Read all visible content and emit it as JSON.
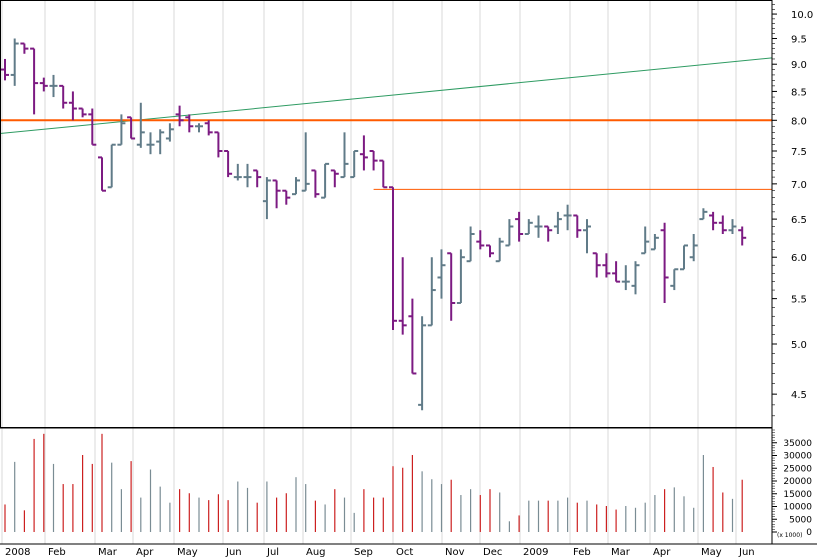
{
  "chart_data": {
    "type": "ohlc-bar",
    "scale": "log",
    "price_axis": {
      "ticks": [
        "10.0",
        "9.5",
        "9.0",
        "8.5",
        "8.0",
        "7.5",
        "7.0",
        "6.5",
        "6.0",
        "5.5",
        "5.0",
        "4.5"
      ],
      "range": [
        4.2,
        10.3
      ]
    },
    "time_axis": {
      "labels": [
        "2008",
        "Feb",
        "Mar",
        "Apr",
        "May",
        "Jun",
        "Jul",
        "Aug",
        "Sep",
        "Oct",
        "Nov",
        "Dec",
        "2009",
        "Feb",
        "Mar",
        "Apr",
        "May",
        "Jun"
      ]
    },
    "volume_axis": {
      "ticks": [
        "35000",
        "30000",
        "25000",
        "20000",
        "15000",
        "10000",
        "5000",
        "0"
      ],
      "range": [
        0,
        40000
      ],
      "unit_label": "(x 1000)"
    },
    "weekly_bars": [
      [
        8.9,
        9.1,
        8.7,
        8.8
      ],
      [
        8.8,
        9.5,
        8.6,
        9.4
      ],
      [
        9.4,
        9.4,
        9.2,
        9.3
      ],
      [
        9.3,
        9.3,
        8.1,
        8.65
      ],
      [
        8.65,
        8.75,
        8.5,
        8.6
      ],
      [
        8.6,
        8.8,
        8.4,
        8.6
      ],
      [
        8.6,
        8.6,
        8.2,
        8.3
      ],
      [
        8.3,
        8.5,
        8.0,
        8.2
      ],
      [
        8.2,
        8.2,
        8.05,
        8.1
      ],
      [
        8.1,
        8.2,
        7.6,
        7.6
      ],
      [
        7.4,
        7.4,
        6.9,
        6.9
      ],
      [
        6.95,
        7.6,
        6.95,
        7.6
      ],
      [
        7.6,
        8.1,
        7.6,
        7.95
      ],
      [
        8.05,
        8.05,
        7.7,
        7.7
      ],
      [
        7.6,
        8.3,
        7.55,
        7.8
      ],
      [
        7.6,
        7.8,
        7.45,
        7.6
      ],
      [
        7.65,
        7.85,
        7.45,
        7.8
      ],
      [
        7.7,
        7.95,
        7.65,
        7.85
      ],
      [
        8.1,
        8.25,
        7.9,
        8.0
      ],
      [
        8.05,
        8.1,
        7.8,
        7.9
      ],
      [
        7.9,
        7.95,
        7.8,
        7.9
      ],
      [
        7.95,
        8.0,
        7.75,
        7.8
      ],
      [
        7.8,
        7.8,
        7.4,
        7.5
      ],
      [
        7.5,
        7.5,
        7.1,
        7.15
      ],
      [
        7.1,
        7.3,
        7.05,
        7.1
      ],
      [
        7.1,
        7.3,
        6.95,
        7.1
      ],
      [
        7.2,
        7.2,
        6.95,
        7.1
      ],
      [
        6.75,
        7.1,
        6.5,
        7.05
      ],
      [
        7.05,
        7.05,
        6.65,
        6.9
      ],
      [
        6.9,
        6.9,
        6.7,
        6.8
      ],
      [
        6.85,
        7.1,
        6.85,
        7.05
      ],
      [
        6.9,
        7.8,
        6.9,
        7.0
      ],
      [
        7.2,
        7.2,
        6.8,
        6.85
      ],
      [
        6.8,
        7.3,
        6.8,
        7.3
      ],
      [
        7.2,
        7.2,
        6.95,
        7.15
      ],
      [
        7.1,
        7.8,
        7.1,
        7.3
      ],
      [
        7.1,
        7.5,
        7.1,
        7.5
      ],
      [
        7.45,
        7.75,
        7.2,
        7.4
      ],
      [
        7.5,
        7.5,
        7.2,
        7.35
      ],
      [
        7.35,
        7.35,
        6.95,
        6.95
      ],
      [
        6.95,
        6.95,
        5.15,
        5.25
      ],
      [
        5.25,
        6.0,
        5.1,
        5.2
      ],
      [
        5.3,
        5.5,
        4.7,
        4.7
      ],
      [
        4.4,
        5.3,
        4.35,
        5.2
      ],
      [
        5.2,
        6.0,
        5.2,
        5.6
      ],
      [
        5.75,
        6.1,
        5.5,
        5.9
      ],
      [
        6.05,
        6.05,
        5.25,
        5.45
      ],
      [
        5.45,
        6.1,
        5.45,
        6.0
      ],
      [
        5.95,
        6.4,
        5.95,
        6.3
      ],
      [
        6.2,
        6.35,
        6.1,
        6.15
      ],
      [
        6.15,
        6.15,
        6.0,
        6.05
      ],
      [
        5.95,
        6.25,
        5.95,
        6.2
      ],
      [
        6.15,
        6.5,
        6.15,
        6.4
      ],
      [
        6.5,
        6.6,
        6.2,
        6.3
      ],
      [
        6.3,
        6.5,
        6.3,
        6.45
      ],
      [
        6.4,
        6.55,
        6.25,
        6.4
      ],
      [
        6.4,
        6.4,
        6.2,
        6.35
      ],
      [
        6.4,
        6.6,
        6.3,
        6.5
      ],
      [
        6.55,
        6.7,
        6.35,
        6.55
      ],
      [
        6.55,
        6.55,
        6.25,
        6.35
      ],
      [
        6.35,
        6.5,
        6.05,
        6.4
      ],
      [
        6.05,
        6.05,
        5.75,
        5.9
      ],
      [
        5.9,
        6.05,
        5.75,
        5.8
      ],
      [
        5.8,
        5.95,
        5.7,
        5.7
      ],
      [
        5.7,
        5.9,
        5.6,
        5.7
      ],
      [
        5.65,
        5.95,
        5.55,
        5.9
      ],
      [
        6.05,
        6.4,
        6.05,
        6.2
      ],
      [
        6.1,
        6.3,
        6.1,
        6.25
      ],
      [
        6.35,
        6.45,
        5.45,
        5.75
      ],
      [
        5.65,
        5.85,
        5.6,
        5.85
      ],
      [
        5.85,
        6.15,
        5.85,
        6.15
      ],
      [
        6.0,
        6.3,
        5.95,
        6.15
      ],
      [
        6.5,
        6.65,
        6.5,
        6.6
      ],
      [
        6.55,
        6.6,
        6.35,
        6.45
      ],
      [
        6.45,
        6.55,
        6.3,
        6.35
      ],
      [
        6.35,
        6.5,
        6.3,
        6.4
      ],
      [
        6.35,
        6.4,
        6.15,
        6.25
      ]
    ],
    "weekly_volume_k": [
      10800,
      27500,
      8500,
      36500,
      38500,
      26700,
      18800,
      18800,
      30200,
      26700,
      38500,
      27200,
      16800,
      27800,
      13500,
      24500,
      17800,
      11500,
      16800,
      15200,
      13500,
      12500,
      14800,
      12500,
      19800,
      17300,
      11500,
      19800,
      13500,
      15200,
      21500,
      18800,
      12300,
      10800,
      16800,
      13500,
      7500,
      16800,
      13500,
      13500,
      25800,
      25200,
      30200,
      23800,
      20700,
      18800,
      20500,
      14500,
      16800,
      14500,
      16800,
      15500,
      4200,
      6500,
      12300,
      12300,
      12300,
      12300,
      13500,
      11500,
      12300,
      10800,
      10200,
      8800,
      10200,
      9500,
      11500,
      14500,
      16800,
      17500,
      14000,
      9500,
      30200,
      25500,
      15500,
      13000,
      20500
    ],
    "lines": {
      "trendline": {
        "color": "#2e9b62",
        "from": [
          0,
          7.78
        ],
        "to": [
          1.0,
          9.12
        ]
      },
      "resistance_8": {
        "color": "#ff5a00",
        "value": 8.0
      },
      "resistance_7": {
        "color": "#ff5a00",
        "value": 6.92,
        "from_week": 38
      }
    },
    "colors": {
      "up": "#607b88",
      "down": "#7c1a82",
      "volume": "#cc2020"
    }
  }
}
